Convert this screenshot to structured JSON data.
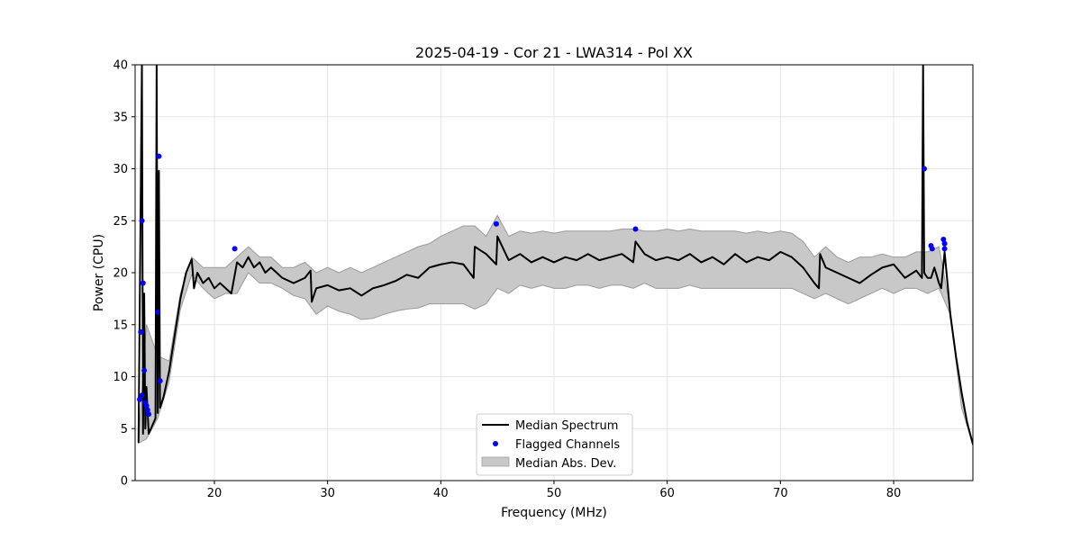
{
  "chart_data": {
    "type": "line",
    "title": "2025-04-19 - Cor 21 - LWA314 - Pol XX",
    "xlabel": "Frequency (MHz)",
    "ylabel": "Power (CPU)",
    "xlim": [
      13.0,
      87.0
    ],
    "ylim": [
      0,
      40
    ],
    "xticks": [
      20,
      30,
      40,
      50,
      60,
      70,
      80
    ],
    "yticks": [
      0,
      5,
      10,
      15,
      20,
      25,
      30,
      35,
      40
    ],
    "xtick_labels": [
      "20",
      "30",
      "40",
      "50",
      "60",
      "70",
      "80"
    ],
    "ytick_labels": [
      "0",
      "5",
      "10",
      "15",
      "20",
      "25",
      "30",
      "35",
      "40"
    ],
    "grid": true,
    "legend": {
      "location": "bottom-center",
      "entries": [
        "Median Spectrum",
        "Flagged Channels",
        "Median Abs. Dev."
      ]
    },
    "series": [
      {
        "name": "Median Spectrum",
        "kind": "line",
        "color": "#000000",
        "x": [
          13.3,
          13.6,
          13.7,
          13.8,
          13.9,
          14.0,
          14.2,
          14.4,
          14.6,
          14.8,
          14.9,
          15.0,
          15.1,
          15.2,
          15.5,
          16.0,
          16.5,
          17.0,
          17.5,
          18.0,
          18.2,
          18.5,
          19.0,
          19.5,
          20.0,
          20.5,
          21.0,
          21.5,
          22.0,
          22.5,
          23.0,
          23.5,
          24.0,
          24.5,
          25.0,
          26.0,
          27.0,
          28.0,
          28.5,
          28.6,
          29.0,
          30.0,
          31.0,
          32.0,
          33.0,
          34.0,
          35.0,
          36.0,
          37.0,
          38.0,
          39.0,
          40.0,
          41.0,
          42.0,
          42.9,
          43.0,
          44.0,
          44.9,
          45.0,
          46.0,
          47.0,
          48.0,
          49.0,
          50.0,
          51.0,
          52.0,
          53.0,
          54.0,
          55.0,
          56.0,
          57.0,
          57.2,
          58.0,
          59.0,
          60.0,
          61.0,
          62.0,
          63.0,
          64.0,
          65.0,
          66.0,
          67.0,
          68.0,
          69.0,
          70.0,
          71.0,
          72.0,
          73.0,
          73.4,
          73.5,
          74.0,
          75.0,
          76.0,
          77.0,
          78.0,
          79.0,
          80.0,
          81.0,
          82.0,
          82.5,
          82.6,
          82.7,
          82.8,
          83.0,
          83.3,
          83.6,
          84.0,
          84.2,
          84.5,
          84.8,
          85.0,
          85.5,
          86.0,
          86.5,
          87.0
        ],
        "y": [
          3.7,
          40.0,
          4.5,
          18.0,
          5.0,
          9.0,
          4.5,
          5.0,
          5.5,
          6.0,
          40.0,
          6.5,
          29.8,
          7.0,
          8.0,
          10.5,
          14.0,
          17.5,
          20.0,
          21.3,
          18.5,
          20.0,
          19.0,
          19.5,
          18.5,
          19.0,
          18.5,
          18.0,
          21.0,
          20.5,
          21.5,
          20.5,
          21.0,
          20.0,
          20.5,
          19.5,
          19.0,
          19.5,
          20.2,
          17.2,
          18.5,
          18.8,
          18.3,
          18.5,
          17.8,
          18.5,
          18.8,
          19.2,
          19.8,
          19.5,
          20.5,
          20.8,
          21.0,
          20.8,
          19.5,
          22.5,
          21.8,
          20.8,
          23.5,
          21.2,
          21.8,
          21.0,
          21.5,
          21.0,
          21.5,
          21.2,
          21.8,
          21.2,
          21.5,
          21.8,
          21.0,
          23.0,
          21.8,
          21.2,
          21.5,
          21.2,
          21.8,
          21.0,
          21.5,
          20.8,
          21.8,
          21.0,
          21.5,
          21.2,
          22.0,
          21.5,
          20.5,
          19.0,
          18.5,
          21.8,
          20.5,
          20.0,
          19.5,
          19.0,
          19.8,
          20.5,
          20.8,
          19.5,
          20.2,
          19.5,
          40.0,
          20.0,
          19.8,
          19.5,
          19.5,
          20.5,
          19.0,
          18.5,
          22.0,
          18.5,
          16.0,
          12.0,
          8.5,
          5.5,
          3.5
        ]
      },
      {
        "name": "Flagged Channels",
        "kind": "scatter",
        "color": "#0000ff",
        "x": [
          13.4,
          13.5,
          13.6,
          13.6,
          13.7,
          13.8,
          13.9,
          14.0,
          14.1,
          14.2,
          15.0,
          15.1,
          15.2,
          21.8,
          44.9,
          57.2,
          82.7,
          83.3,
          83.4,
          84.4,
          84.5,
          84.5
        ],
        "y": [
          7.8,
          14.3,
          25.0,
          8.2,
          19.0,
          10.6,
          7.5,
          7.2,
          6.8,
          6.4,
          16.2,
          31.2,
          9.6,
          22.3,
          24.7,
          24.2,
          30.0,
          22.6,
          22.3,
          23.2,
          22.8,
          22.3
        ]
      },
      {
        "name": "Median Abs. Dev.",
        "kind": "band",
        "color": "#c8c8c8",
        "x": [
          13.3,
          14.0,
          15.0,
          16.0,
          17.0,
          18.0,
          19.0,
          20.0,
          21.0,
          22.0,
          23.0,
          24.0,
          25.0,
          26.0,
          27.0,
          28.0,
          29.0,
          30.0,
          31.0,
          32.0,
          33.0,
          34.0,
          35.0,
          36.0,
          37.0,
          38.0,
          39.0,
          40.0,
          41.0,
          42.0,
          43.0,
          44.0,
          45.0,
          46.0,
          47.0,
          48.0,
          49.0,
          50.0,
          51.0,
          52.0,
          53.0,
          54.0,
          55.0,
          56.0,
          57.0,
          58.0,
          59.0,
          60.0,
          61.0,
          62.0,
          63.0,
          64.0,
          65.0,
          66.0,
          67.0,
          68.0,
          69.0,
          70.0,
          71.0,
          72.0,
          73.0,
          74.0,
          75.0,
          76.0,
          77.0,
          78.0,
          79.0,
          80.0,
          81.0,
          82.0,
          83.0,
          84.0,
          85.0,
          86.0,
          87.0
        ],
        "lower": [
          3.6,
          4.0,
          6.0,
          9.5,
          16.5,
          19.8,
          18.5,
          17.5,
          18.0,
          18.0,
          20.0,
          19.0,
          19.0,
          18.5,
          17.8,
          17.5,
          16.0,
          16.8,
          16.3,
          16.0,
          15.5,
          15.6,
          16.0,
          16.3,
          16.5,
          16.6,
          17.0,
          17.0,
          17.0,
          17.0,
          16.5,
          17.0,
          18.5,
          18.0,
          18.8,
          18.5,
          18.8,
          18.5,
          18.5,
          18.8,
          18.8,
          18.5,
          18.8,
          18.8,
          18.5,
          19.0,
          18.5,
          18.5,
          18.5,
          18.8,
          18.5,
          18.5,
          18.5,
          18.5,
          18.5,
          18.5,
          18.5,
          18.5,
          18.5,
          18.0,
          17.5,
          18.0,
          17.5,
          17.0,
          17.5,
          18.0,
          18.5,
          18.0,
          18.5,
          18.5,
          18.0,
          18.5,
          16.0,
          7.0,
          3.5
        ],
        "upper": [
          3.8,
          15.0,
          12.0,
          11.5,
          18.0,
          21.5,
          20.5,
          20.5,
          20.5,
          21.5,
          22.5,
          21.5,
          21.5,
          20.5,
          20.5,
          21.0,
          20.0,
          20.5,
          20.0,
          20.5,
          20.0,
          20.5,
          21.0,
          21.5,
          22.0,
          22.5,
          22.8,
          23.5,
          24.0,
          24.5,
          24.5,
          23.5,
          25.5,
          23.5,
          24.0,
          23.8,
          24.0,
          23.8,
          24.0,
          24.0,
          24.0,
          24.0,
          24.0,
          24.2,
          24.2,
          24.0,
          24.0,
          24.2,
          24.0,
          24.2,
          24.0,
          24.0,
          24.0,
          24.0,
          23.8,
          24.0,
          23.8,
          24.0,
          23.8,
          23.0,
          21.5,
          22.5,
          21.5,
          21.0,
          21.5,
          21.5,
          21.8,
          21.5,
          21.5,
          22.0,
          22.0,
          22.5,
          16.5,
          8.0,
          3.6
        ]
      }
    ]
  }
}
